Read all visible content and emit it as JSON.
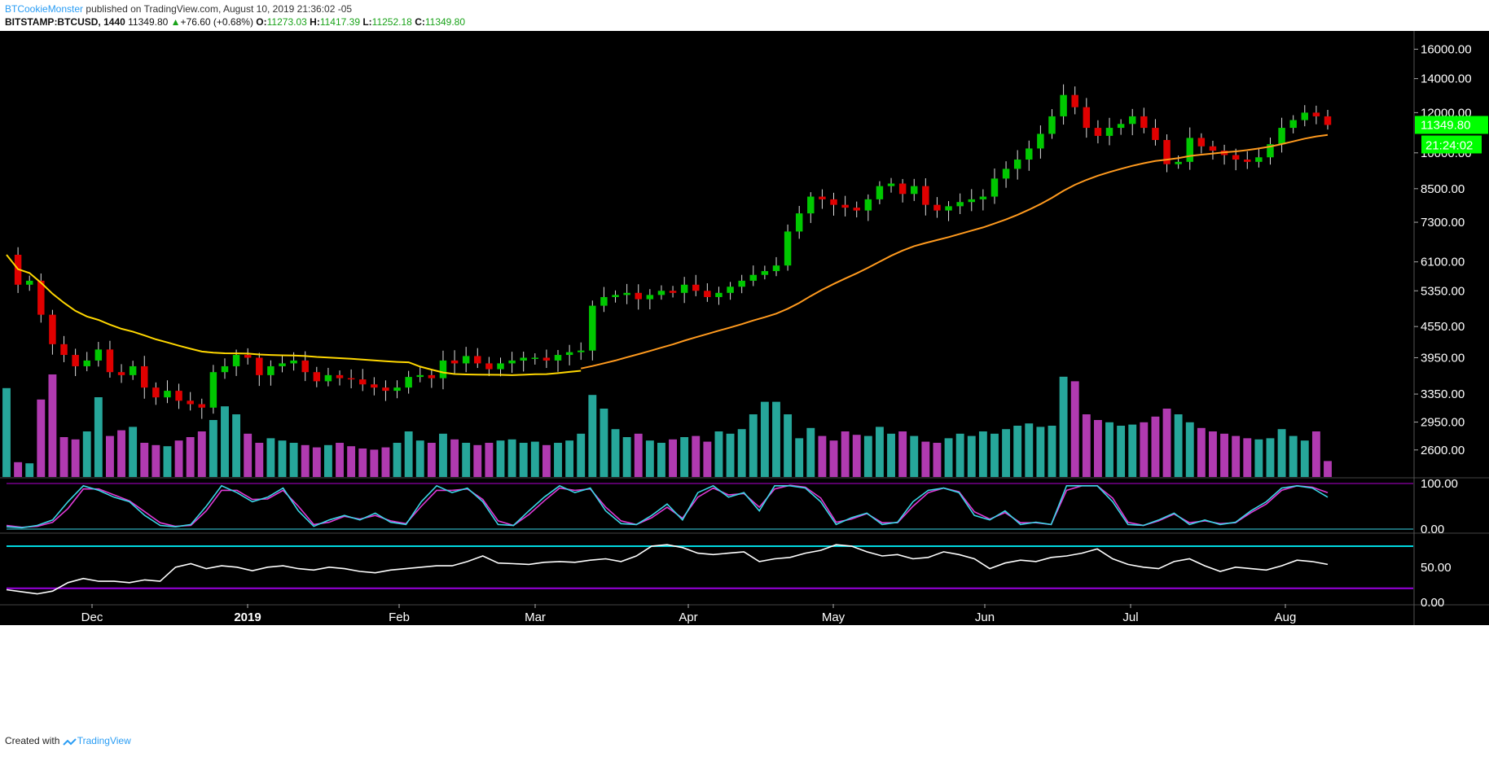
{
  "header": {
    "author": "BTCookieMonster",
    "published": "published on TradingView.com, August 10, 2019 21:36:02 -05",
    "symbol": "BITSTAMP:BTCUSD, 1440",
    "last": "11349.80",
    "change_arrow": "▲",
    "change": "+76.60 (+0.68%)",
    "o_label": "O:",
    "o_val": "11273.03",
    "h_label": "H:",
    "h_val": "11417.39",
    "l_label": "L:",
    "l_val": "11252.18",
    "c_label": "C:",
    "c_val": "11349.80"
  },
  "footer": {
    "created_with": "Created with",
    "brand": "TradingView",
    "brand_icon": "tradingview-logo-icon"
  },
  "price_tag": {
    "value": "11349.80",
    "countdown": "21:24:02",
    "color": "#00ff00"
  },
  "colors": {
    "background": "#000000",
    "up_candle": "#00c800",
    "down_candle": "#e00000",
    "volume_up": "#26a69a",
    "volume_down": "#b03ab0",
    "ma_long": "#ffd700",
    "ma_short": "#ff9a1e",
    "stoch_k": "#3ad6e6",
    "stoch_d": "#e03ad6",
    "rsi_line": "#ffffff",
    "band_upper": "#00d8e0",
    "band_lower": "#9a00e0"
  },
  "chart_data": [
    {
      "type": "candlestick",
      "price_axis_ticks": [
        "16000.00",
        "14000.00",
        "12000.00",
        "10000.00",
        "8500.00",
        "7300.00",
        "6100.00",
        "5350.00",
        "4550.00",
        "3950.00",
        "3350.00",
        "2950.00",
        "2600.00"
      ],
      "scale": "log",
      "ylim": [
        2300,
        17000
      ],
      "x_ticks": [
        "Dec",
        "2019",
        "Feb",
        "Mar",
        "Apr",
        "May",
        "Jun",
        "Jul",
        "Aug"
      ],
      "close_series_approx": [
        6300,
        5500,
        5600,
        4800,
        4200,
        4000,
        3800,
        3900,
        4100,
        3700,
        3650,
        3800,
        3450,
        3300,
        3400,
        3250,
        3200,
        3150,
        3700,
        3800,
        4000,
        3950,
        3650,
        3800,
        3850,
        3900,
        3700,
        3550,
        3650,
        3600,
        3580,
        3500,
        3450,
        3400,
        3450,
        3620,
        3650,
        3600,
        3900,
        3850,
        3980,
        3850,
        3750,
        3850,
        3900,
        3950,
        3950,
        3900,
        4000,
        4050,
        4080,
        5000,
        5200,
        5250,
        5300,
        5150,
        5250,
        5350,
        5300,
        5500,
        5350,
        5200,
        5300,
        5450,
        5600,
        5750,
        5850,
        6000,
        7000,
        7600,
        8200,
        8100,
        7900,
        7800,
        7700,
        8100,
        8600,
        8700,
        8300,
        8600,
        7900,
        7700,
        7850,
        8000,
        8100,
        8200,
        8900,
        9300,
        9700,
        10200,
        10900,
        11800,
        13000,
        12300,
        11200,
        10800,
        11200,
        11400,
        11800,
        11200,
        10600,
        9500,
        9600,
        10700,
        10300,
        10100,
        9900,
        9700,
        9600,
        9800,
        10400,
        11200,
        11600,
        12000,
        11800,
        11350
      ],
      "volume_relative": [
        0.78,
        0.13,
        0.12,
        0.68,
        0.9,
        0.35,
        0.33,
        0.4,
        0.7,
        0.36,
        0.41,
        0.44,
        0.3,
        0.28,
        0.27,
        0.32,
        0.35,
        0.4,
        0.5,
        0.62,
        0.55,
        0.38,
        0.3,
        0.34,
        0.32,
        0.3,
        0.28,
        0.26,
        0.28,
        0.3,
        0.27,
        0.25,
        0.24,
        0.26,
        0.3,
        0.4,
        0.32,
        0.3,
        0.38,
        0.33,
        0.3,
        0.28,
        0.3,
        0.32,
        0.33,
        0.3,
        0.31,
        0.28,
        0.3,
        0.32,
        0.38,
        0.72,
        0.6,
        0.42,
        0.35,
        0.38,
        0.32,
        0.3,
        0.33,
        0.35,
        0.36,
        0.31,
        0.4,
        0.38,
        0.42,
        0.55,
        0.66,
        0.66,
        0.55,
        0.34,
        0.43,
        0.36,
        0.32,
        0.4,
        0.37,
        0.36,
        0.44,
        0.38,
        0.4,
        0.36,
        0.31,
        0.3,
        0.34,
        0.38,
        0.36,
        0.4,
        0.38,
        0.42,
        0.45,
        0.47,
        0.44,
        0.45,
        0.88,
        0.84,
        0.55,
        0.5,
        0.48,
        0.45,
        0.46,
        0.48,
        0.53,
        0.6,
        0.55,
        0.48,
        0.43,
        0.4,
        0.38,
        0.36,
        0.34,
        0.33,
        0.34,
        0.42,
        0.36,
        0.32,
        0.4,
        0.14
      ]
    },
    {
      "type": "line",
      "name": "stochastic",
      "ylim": [
        0,
        100
      ],
      "axis_ticks": [
        "100.00",
        "0.00"
      ],
      "k_series_approx": [
        5,
        3,
        8,
        20,
        60,
        95,
        85,
        70,
        60,
        30,
        8,
        5,
        10,
        50,
        95,
        80,
        60,
        70,
        90,
        40,
        6,
        20,
        30,
        20,
        35,
        15,
        10,
        60,
        95,
        80,
        90,
        60,
        10,
        8,
        40,
        70,
        95,
        80,
        90,
        40,
        12,
        10,
        30,
        55,
        20,
        80,
        95,
        70,
        80,
        40,
        95,
        95,
        90,
        60,
        10,
        25,
        35,
        10,
        15,
        60,
        85,
        90,
        80,
        30,
        20,
        40,
        10,
        15,
        10,
        95,
        95,
        95,
        60,
        10,
        8,
        20,
        35,
        10,
        20,
        10,
        15,
        40,
        60,
        90,
        95,
        90,
        70
      ],
      "d_series_approx": [
        8,
        4,
        6,
        15,
        45,
        88,
        88,
        75,
        62,
        38,
        14,
        6,
        8,
        40,
        85,
        85,
        65,
        66,
        85,
        50,
        10,
        15,
        28,
        22,
        30,
        18,
        12,
        50,
        85,
        85,
        88,
        65,
        18,
        8,
        32,
        62,
        90,
        85,
        88,
        48,
        18,
        10,
        25,
        48,
        24,
        70,
        90,
        75,
        78,
        48,
        88,
        96,
        92,
        68,
        15,
        22,
        34,
        14,
        14,
        50,
        80,
        90,
        82,
        38,
        22,
        36,
        14,
        14,
        10,
        85,
        95,
        95,
        68,
        15,
        8,
        18,
        33,
        14,
        18,
        12,
        14,
        36,
        55,
        85,
        95,
        92,
        80
      ]
    },
    {
      "type": "line",
      "name": "rsi",
      "axis_ticks": [
        "50.00",
        "0.00"
      ],
      "band_upper": 80,
      "band_lower": 20,
      "values_approx": [
        18,
        15,
        12,
        16,
        28,
        34,
        30,
        30,
        28,
        32,
        30,
        50,
        55,
        48,
        52,
        50,
        45,
        50,
        52,
        48,
        46,
        50,
        48,
        44,
        42,
        46,
        48,
        50,
        52,
        52,
        58,
        66,
        56,
        55,
        54,
        57,
        58,
        57,
        60,
        62,
        58,
        66,
        80,
        82,
        78,
        70,
        68,
        70,
        72,
        58,
        62,
        64,
        70,
        74,
        82,
        80,
        72,
        66,
        68,
        62,
        64,
        72,
        68,
        62,
        48,
        56,
        60,
        58,
        64,
        66,
        70,
        76,
        62,
        54,
        50,
        48,
        58,
        62,
        52,
        44,
        50,
        48,
        46,
        52,
        60,
        58,
        54
      ]
    }
  ]
}
